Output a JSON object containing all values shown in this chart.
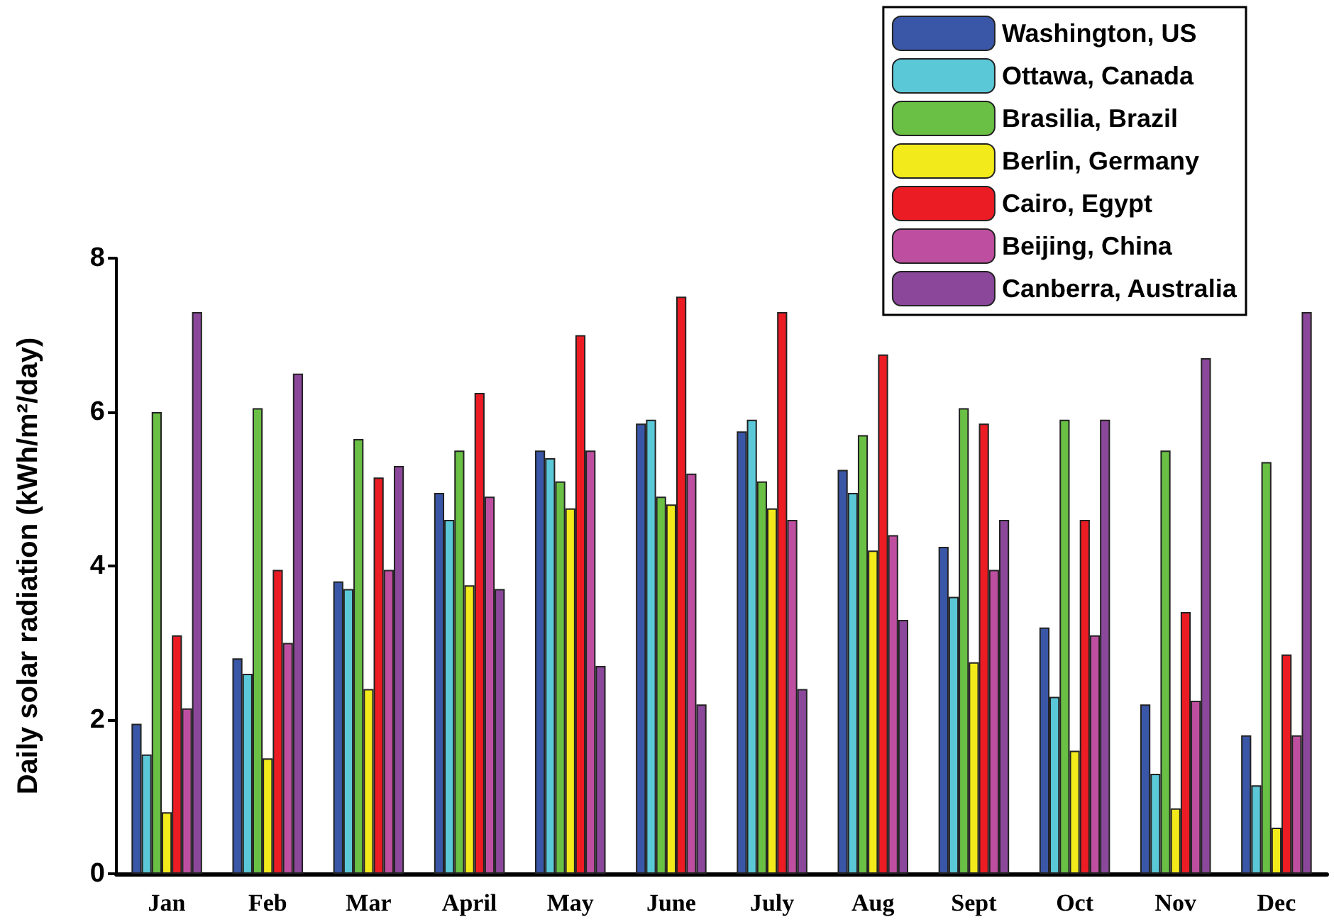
{
  "chart_data": {
    "type": "bar",
    "ylabel": "Daily solar radiation (kWh/m²/day)",
    "categories": [
      "Jan",
      "Feb",
      "Mar",
      "April",
      "May",
      "June",
      "July",
      "Aug",
      "Sept",
      "Oct",
      "Nov",
      "Dec"
    ],
    "series": [
      {
        "name": "Washington, US",
        "color": "#3a57a7",
        "values": [
          1.95,
          2.8,
          3.8,
          4.95,
          5.5,
          5.85,
          5.75,
          5.25,
          4.25,
          3.2,
          2.2,
          1.8
        ]
      },
      {
        "name": "Ottawa, Canada",
        "color": "#5bc8d8",
        "values": [
          1.55,
          2.6,
          3.7,
          4.6,
          5.4,
          5.9,
          5.9,
          4.95,
          3.6,
          2.3,
          1.3,
          1.15
        ]
      },
      {
        "name": "Brasilia, Brazil",
        "color": "#6abf45",
        "values": [
          6.0,
          6.05,
          5.65,
          5.5,
          5.1,
          4.9,
          5.1,
          5.7,
          6.05,
          5.9,
          5.5,
          5.35
        ]
      },
      {
        "name": "Berlin, Germany",
        "color": "#f2ea1a",
        "values": [
          0.8,
          1.5,
          2.4,
          3.75,
          4.75,
          4.8,
          4.75,
          4.2,
          2.75,
          1.6,
          0.85,
          0.6
        ]
      },
      {
        "name": "Cairo, Egypt",
        "color": "#ec1c24",
        "values": [
          3.1,
          3.95,
          5.15,
          6.25,
          7.0,
          7.5,
          7.3,
          6.75,
          5.85,
          4.6,
          3.4,
          2.85
        ]
      },
      {
        "name": "Beijing, China",
        "color": "#be4fa0",
        "values": [
          2.15,
          3.0,
          3.95,
          4.9,
          5.5,
          5.2,
          4.6,
          4.4,
          3.95,
          3.1,
          2.25,
          1.8
        ]
      },
      {
        "name": "Canberra, Australia",
        "color": "#8b489b",
        "values": [
          7.3,
          6.5,
          5.3,
          3.7,
          2.7,
          2.2,
          2.4,
          3.3,
          4.6,
          5.9,
          6.7,
          7.3
        ]
      }
    ],
    "ylim": [
      0,
      8
    ],
    "yticks": [
      0,
      2,
      4,
      6,
      8
    ],
    "grid": false,
    "legend": "top right"
  }
}
